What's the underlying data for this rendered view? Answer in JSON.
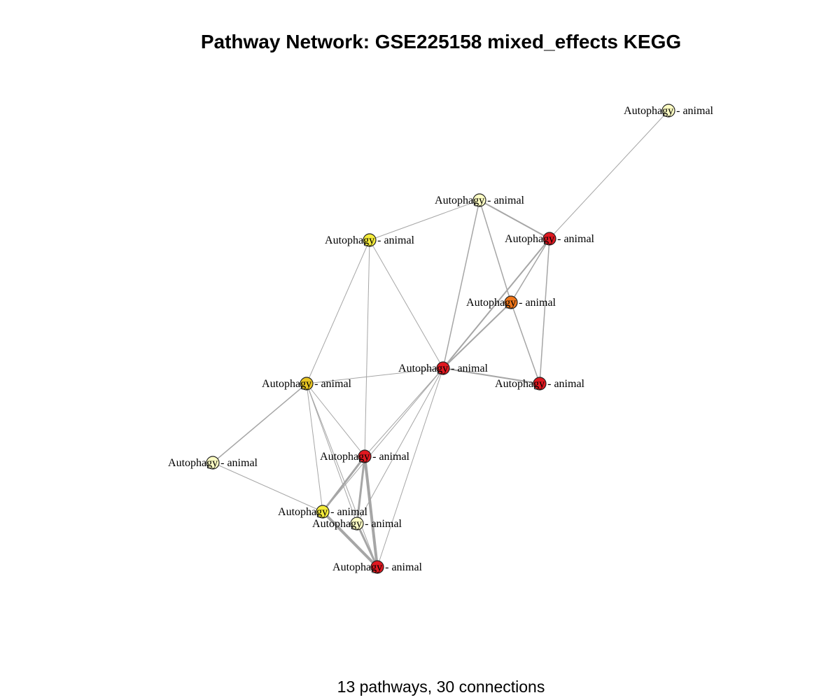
{
  "title": "Pathway Network: GSE225158 mixed_effects KEGG",
  "subtitle": "13 pathways, 30 connections",
  "colors": {
    "edge": "#a6a6a6",
    "node_stroke": "#222222",
    "significance_levels": [
      "#ffffc4",
      "#f5ec3a",
      "#e9c623",
      "#ef7519",
      "#e01820"
    ]
  },
  "nodes": [
    {
      "id": "n1",
      "label": "Autophagy - animal",
      "color": "#ffffc4"
    },
    {
      "id": "n2",
      "label": "Autophagy - animal",
      "color": "#ffffc4"
    },
    {
      "id": "n3",
      "label": "Autophagy - animal",
      "color": "#f5ec3a"
    },
    {
      "id": "n4",
      "label": "Autophagy - animal",
      "color": "#e01820"
    },
    {
      "id": "n5",
      "label": "Autophagy - animal",
      "color": "#ef7519"
    },
    {
      "id": "n6",
      "label": "Autophagy - animal",
      "color": "#e01820"
    },
    {
      "id": "n7",
      "label": "Autophagy - animal",
      "color": "#e01820"
    },
    {
      "id": "n8",
      "label": "Autophagy - animal",
      "color": "#e9c623"
    },
    {
      "id": "n9",
      "label": "Autophagy - animal",
      "color": "#ffffc4"
    },
    {
      "id": "n10",
      "label": "Autophagy - animal",
      "color": "#e01820"
    },
    {
      "id": "n11",
      "label": "Autophagy - animal",
      "color": "#f5ec3a"
    },
    {
      "id": "n12",
      "label": "Autophagy - animal",
      "color": "#ffffc4"
    },
    {
      "id": "n13",
      "label": "Autophagy - animal",
      "color": "#e01820"
    }
  ],
  "edges": [
    {
      "source": "n1",
      "target": "n4",
      "weight": 1
    },
    {
      "source": "n2",
      "target": "n3",
      "weight": 1
    },
    {
      "source": "n2",
      "target": "n4",
      "weight": 2
    },
    {
      "source": "n2",
      "target": "n5",
      "weight": 1.5
    },
    {
      "source": "n2",
      "target": "n6",
      "weight": 1.5
    },
    {
      "source": "n3",
      "target": "n6",
      "weight": 1
    },
    {
      "source": "n3",
      "target": "n8",
      "weight": 1
    },
    {
      "source": "n3",
      "target": "n10",
      "weight": 1
    },
    {
      "source": "n4",
      "target": "n5",
      "weight": 1.5
    },
    {
      "source": "n4",
      "target": "n6",
      "weight": 2
    },
    {
      "source": "n4",
      "target": "n7",
      "weight": 1.5
    },
    {
      "source": "n5",
      "target": "n6",
      "weight": 2
    },
    {
      "source": "n5",
      "target": "n7",
      "weight": 1.5
    },
    {
      "source": "n6",
      "target": "n7",
      "weight": 2
    },
    {
      "source": "n6",
      "target": "n8",
      "weight": 1
    },
    {
      "source": "n6",
      "target": "n10",
      "weight": 1
    },
    {
      "source": "n6",
      "target": "n11",
      "weight": 1
    },
    {
      "source": "n6",
      "target": "n12",
      "weight": 1
    },
    {
      "source": "n6",
      "target": "n13",
      "weight": 1
    },
    {
      "source": "n8",
      "target": "n9",
      "weight": 1.5
    },
    {
      "source": "n8",
      "target": "n10",
      "weight": 1
    },
    {
      "source": "n8",
      "target": "n11",
      "weight": 1
    },
    {
      "source": "n8",
      "target": "n12",
      "weight": 1
    },
    {
      "source": "n8",
      "target": "n13",
      "weight": 1
    },
    {
      "source": "n9",
      "target": "n11",
      "weight": 1
    },
    {
      "source": "n10",
      "target": "n11",
      "weight": 3
    },
    {
      "source": "n10",
      "target": "n12",
      "weight": 3
    },
    {
      "source": "n10",
      "target": "n13",
      "weight": 4
    },
    {
      "source": "n11",
      "target": "n13",
      "weight": 4
    },
    {
      "source": "n12",
      "target": "n13",
      "weight": 3
    }
  ]
}
